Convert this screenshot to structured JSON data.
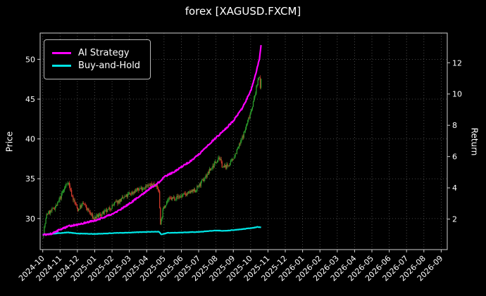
{
  "chart_data": {
    "type": "candlestick+line",
    "title": "forex [XAGUSD.FXCM]",
    "ylabel_left": "Price",
    "ylabel_right": "Return",
    "background_color": "#000000",
    "grid": true,
    "legend_position": "upper-left",
    "x_tick_labels": [
      "2024-10",
      "2024-11",
      "2024-12",
      "2025-01",
      "2025-02",
      "2025-03",
      "2025-04",
      "2025-05",
      "2025-06",
      "2025-07",
      "2025-08",
      "2025-09",
      "2025-10",
      "2025-11",
      "2025-12",
      "2026-01",
      "2026-02",
      "2026-03",
      "2026-04",
      "2026-05",
      "2026-06",
      "2026-07",
      "2026-08",
      "2026-09"
    ],
    "left_ticks": [
      30,
      35,
      40,
      45,
      50
    ],
    "right_ticks": [
      2,
      4,
      6,
      8,
      10,
      12
    ],
    "price_ylim": [
      26.1,
      53.3
    ],
    "return_ylim": [
      0.05,
      13.9
    ],
    "data_end_month": 12.6,
    "price_keypoints": {
      "t": [
        0,
        0.24,
        0.52,
        0.85,
        1.13,
        1.45,
        1.73,
        2.02,
        2.34,
        2.66,
        2.94,
        3.35,
        3.75,
        4.15,
        4.56,
        4.96,
        5.36,
        5.77,
        6.17,
        6.49,
        6.7,
        6.8,
        6.95,
        7.18,
        7.58,
        7.98,
        8.39,
        8.79,
        9.19,
        9.6,
        9.92,
        10.16,
        10.4,
        10.65,
        10.89,
        11.13,
        11.41,
        11.69,
        11.94,
        12.18,
        12.38,
        12.5,
        12.56,
        12.6
      ],
      "v": [
        27.8,
        30.6,
        31.0,
        31.8,
        33.2,
        34.7,
        32.6,
        31.1,
        31.9,
        30.9,
        30.0,
        30.5,
        31.0,
        31.9,
        32.4,
        33.0,
        33.5,
        33.9,
        34.1,
        34.4,
        33.5,
        29.3,
        31.2,
        32.3,
        32.6,
        32.8,
        33.2,
        33.5,
        34.6,
        35.9,
        36.9,
        37.8,
        36.4,
        36.6,
        37.1,
        38.2,
        39.5,
        41.2,
        43.0,
        44.8,
        46.9,
        48.3,
        46.2,
        47.3
      ]
    },
    "candles": {
      "up_color": "#2ca02c",
      "down_color": "#d03a2b",
      "step_months": 0.045
    },
    "series": [
      {
        "name": "AI Strategy",
        "color": "#ff00ff",
        "axis": "right",
        "keypoints": {
          "t": [
            0,
            0.5,
            1.0,
            1.5,
            2.0,
            2.5,
            3.0,
            3.5,
            4.0,
            4.5,
            5.0,
            5.5,
            6.0,
            6.5,
            6.8,
            7.0,
            7.5,
            8.0,
            8.5,
            9.0,
            9.5,
            10.0,
            10.5,
            11.0,
            11.5,
            12.0,
            12.3,
            12.5,
            12.6
          ],
          "v": [
            1.0,
            1.06,
            1.33,
            1.55,
            1.64,
            1.78,
            1.91,
            2.09,
            2.31,
            2.63,
            2.99,
            3.39,
            3.8,
            4.2,
            4.43,
            4.7,
            4.97,
            5.33,
            5.69,
            6.13,
            6.67,
            7.21,
            7.71,
            8.29,
            9.06,
            10.18,
            11.3,
            12.2,
            13.1
          ]
        }
      },
      {
        "name": "Buy-and-Hold",
        "color": "#00e5e5",
        "axis": "right",
        "keypoints": {
          "t": [
            0,
            0.7,
            1.45,
            2.0,
            3.0,
            4.0,
            5.0,
            6.0,
            6.7,
            6.85,
            7.2,
            8.0,
            9.0,
            9.9,
            10.5,
            11.2,
            12.0,
            12.4,
            12.6
          ],
          "v": [
            1.0,
            1.08,
            1.15,
            1.08,
            1.05,
            1.1,
            1.14,
            1.18,
            1.2,
            1.02,
            1.12,
            1.14,
            1.18,
            1.27,
            1.25,
            1.32,
            1.42,
            1.5,
            1.47
          ]
        }
      }
    ]
  }
}
